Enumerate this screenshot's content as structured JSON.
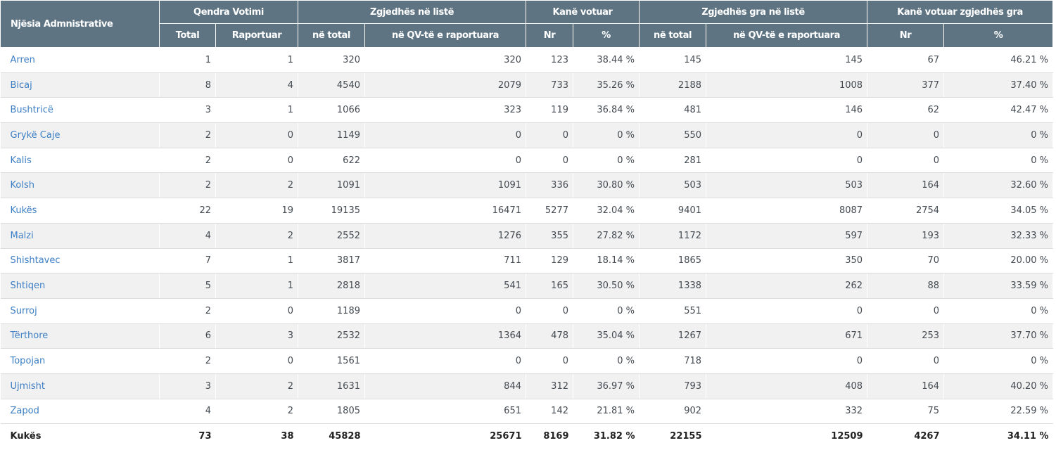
{
  "header": {
    "first_col": "Njësia Admnistrative",
    "groups": [
      {
        "label": "Qendra Votimi",
        "span": 2
      },
      {
        "label": "Zgjedhës në listë",
        "span": 2
      },
      {
        "label": "Kanë votuar",
        "span": 2
      },
      {
        "label": "Zgjedhës gra në listë",
        "span": 2
      },
      {
        "label": "Kanë votuar zgjedhës gra",
        "span": 2
      }
    ],
    "subcols": [
      "Total",
      "Raportuar",
      "në total",
      "në QV-të e raportuara",
      "Nr",
      "%",
      "në total",
      "në QV-të e raportuara",
      "Nr",
      "%"
    ]
  },
  "rows": [
    {
      "name": "Arren",
      "values": [
        "1",
        "1",
        "320",
        "320",
        "123",
        "38.44 %",
        "145",
        "145",
        "67",
        "46.21 %"
      ]
    },
    {
      "name": "Bicaj",
      "values": [
        "8",
        "4",
        "4540",
        "2079",
        "733",
        "35.26 %",
        "2188",
        "1008",
        "377",
        "37.40 %"
      ]
    },
    {
      "name": "Bushtricë",
      "values": [
        "3",
        "1",
        "1066",
        "323",
        "119",
        "36.84 %",
        "481",
        "146",
        "62",
        "42.47 %"
      ]
    },
    {
      "name": "Grykë Caje",
      "values": [
        "2",
        "0",
        "1149",
        "0",
        "0",
        "0 %",
        "550",
        "0",
        "0",
        "0 %"
      ]
    },
    {
      "name": "Kalis",
      "values": [
        "2",
        "0",
        "622",
        "0",
        "0",
        "0 %",
        "281",
        "0",
        "0",
        "0 %"
      ]
    },
    {
      "name": "Kolsh",
      "values": [
        "2",
        "2",
        "1091",
        "1091",
        "336",
        "30.80 %",
        "503",
        "503",
        "164",
        "32.60 %"
      ]
    },
    {
      "name": "Kukës",
      "values": [
        "22",
        "19",
        "19135",
        "16471",
        "5277",
        "32.04 %",
        "9401",
        "8087",
        "2754",
        "34.05 %"
      ]
    },
    {
      "name": "Malzi",
      "values": [
        "4",
        "2",
        "2552",
        "1276",
        "355",
        "27.82 %",
        "1172",
        "597",
        "193",
        "32.33 %"
      ]
    },
    {
      "name": "Shishtavec",
      "values": [
        "7",
        "1",
        "3817",
        "711",
        "129",
        "18.14 %",
        "1865",
        "350",
        "70",
        "20.00 %"
      ]
    },
    {
      "name": "Shtiqen",
      "values": [
        "5",
        "1",
        "2818",
        "541",
        "165",
        "30.50 %",
        "1338",
        "262",
        "88",
        "33.59 %"
      ]
    },
    {
      "name": "Surroj",
      "values": [
        "2",
        "0",
        "1189",
        "0",
        "0",
        "0 %",
        "551",
        "0",
        "0",
        "0 %"
      ]
    },
    {
      "name": "Tërthore",
      "values": [
        "6",
        "3",
        "2532",
        "1364",
        "478",
        "35.04 %",
        "1267",
        "671",
        "253",
        "37.70 %"
      ]
    },
    {
      "name": "Topojan",
      "values": [
        "2",
        "0",
        "1561",
        "0",
        "0",
        "0 %",
        "718",
        "0",
        "0",
        "0 %"
      ]
    },
    {
      "name": "Ujmisht",
      "values": [
        "3",
        "2",
        "1631",
        "844",
        "312",
        "36.97 %",
        "793",
        "408",
        "164",
        "40.20 %"
      ]
    },
    {
      "name": "Zapod",
      "values": [
        "4",
        "2",
        "1805",
        "651",
        "142",
        "21.81 %",
        "902",
        "332",
        "75",
        "22.59 %"
      ]
    }
  ],
  "total": {
    "name": "Kukës",
    "values": [
      "73",
      "38",
      "45828",
      "25671",
      "8169",
      "31.82 %",
      "22155",
      "12509",
      "4267",
      "34.11 %"
    ]
  },
  "colors": {
    "header_bg": "#5e7483",
    "link": "#3d7fc4",
    "stripe": "#f1f1f1"
  }
}
